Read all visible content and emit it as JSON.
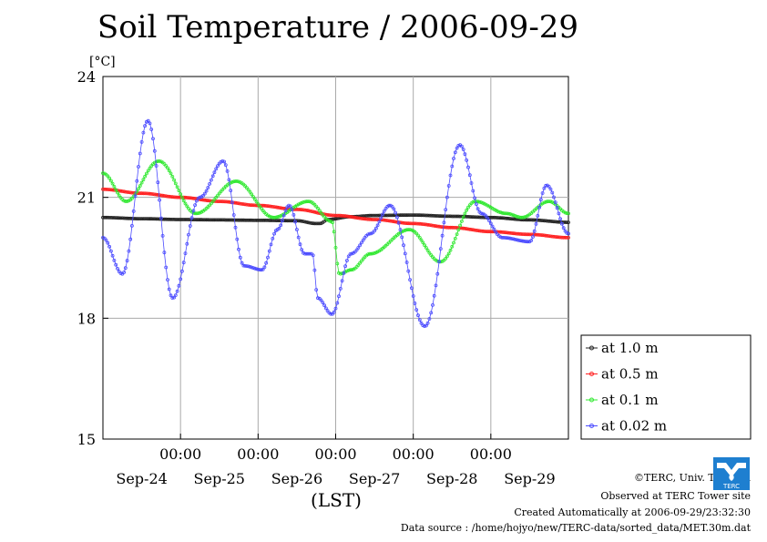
{
  "chart_data": {
    "type": "line",
    "title": "Soil Temperature / 2006-09-29",
    "ylabel": "[°C]",
    "xlabel": "(LST)",
    "ylim": [
      15,
      24
    ],
    "yticks": [
      "15",
      "18",
      "21",
      "24"
    ],
    "xlim_days": [
      0,
      6
    ],
    "time_tick_label": "00:00",
    "date_labels": [
      "Sep-24",
      "Sep-25",
      "Sep-26",
      "Sep-27",
      "Sep-28",
      "Sep-29"
    ],
    "grid": true,
    "legend_position": "right",
    "series": [
      {
        "name": "at 1.0 m",
        "color": "#222222",
        "x": [
          0,
          0.5,
          1,
          1.5,
          2,
          2.5,
          2.75,
          2.8,
          2.9,
          3.2,
          3.5,
          4,
          4.5,
          5,
          5.5,
          6
        ],
        "values": [
          20.5,
          20.47,
          20.45,
          20.44,
          20.43,
          20.42,
          20.35,
          20.35,
          20.45,
          20.52,
          20.55,
          20.56,
          20.53,
          20.5,
          20.44,
          20.38
        ]
      },
      {
        "name": "at 0.5 m",
        "color": "#ff2020",
        "x": [
          0,
          0.5,
          1,
          1.5,
          2,
          2.5,
          3,
          3.5,
          4,
          4.5,
          5,
          5.5,
          6
        ],
        "values": [
          21.2,
          21.1,
          21.0,
          20.9,
          20.8,
          20.7,
          20.55,
          20.45,
          20.35,
          20.25,
          20.15,
          20.08,
          20.0
        ]
      },
      {
        "name": "at 0.1 m",
        "color": "#2ee82e",
        "x": [
          0,
          0.3,
          0.72,
          1.2,
          1.72,
          2.2,
          2.65,
          2.95,
          3.05,
          3.2,
          3.45,
          3.95,
          4.35,
          4.8,
          5.2,
          5.4,
          5.75,
          6
        ],
        "values": [
          21.6,
          20.9,
          21.9,
          20.6,
          21.4,
          20.5,
          20.9,
          20.4,
          19.1,
          19.2,
          19.6,
          20.2,
          19.4,
          20.9,
          20.6,
          20.5,
          20.9,
          20.6
        ]
      },
      {
        "name": "at 0.02 m",
        "color": "#4a4aff",
        "x": [
          0,
          0.25,
          0.58,
          0.9,
          1.25,
          1.55,
          1.82,
          2.05,
          2.25,
          2.4,
          2.6,
          2.7,
          2.77,
          2.95,
          3.2,
          3.45,
          3.7,
          4.15,
          4.6,
          4.88,
          5.15,
          5.5,
          5.72,
          6
        ],
        "values": [
          20.0,
          19.1,
          22.9,
          18.5,
          21.0,
          21.9,
          19.3,
          19.2,
          20.2,
          20.8,
          19.6,
          19.6,
          18.5,
          18.1,
          19.6,
          20.1,
          20.8,
          17.8,
          22.3,
          20.6,
          20.0,
          19.9,
          21.3,
          20.1
        ]
      }
    ]
  },
  "footer": {
    "copyright": "©TERC, Univ. Tsukuba",
    "observed": "Observed at TERC Tower site",
    "created": "Created Automatically at 2006-09-29/23:32:30",
    "source": "Data source : /home/hojyo/new/TERC-data/sorted_data/MET.30m.dat"
  },
  "logo": {
    "text": "TERC",
    "color": "#1e7fd0"
  }
}
